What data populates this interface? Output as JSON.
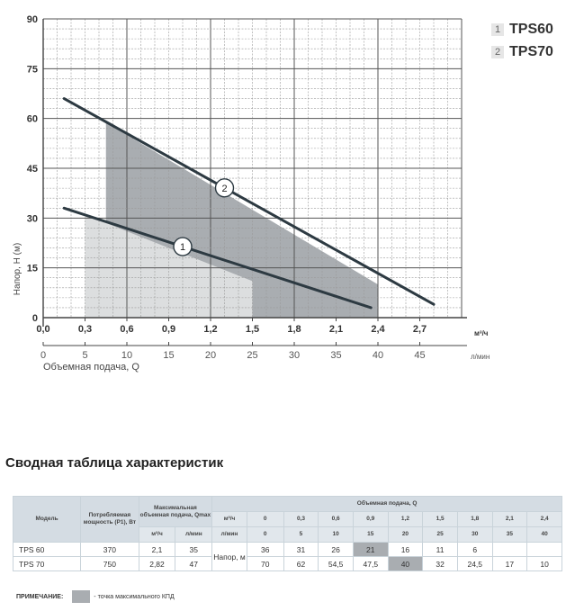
{
  "chart_data": {
    "type": "line",
    "xlabel": "Объемная подача, Q",
    "ylabel": "Напор, Н (м)",
    "x_unit_primary": "м³/ч",
    "x_unit_secondary": "л/мин",
    "xlim": [
      0,
      3.0
    ],
    "ylim": [
      0,
      90
    ],
    "x_ticks": [
      "0,0",
      "0,3",
      "0,6",
      "0,9",
      "1,2",
      "1,5",
      "1,8",
      "2,1",
      "2,4",
      "2,7"
    ],
    "x_ticks_secondary": [
      "0",
      "5",
      "10",
      "15",
      "20",
      "25",
      "30",
      "35",
      "40",
      "45"
    ],
    "y_ticks": [
      "0",
      "15",
      "30",
      "45",
      "60",
      "75",
      "90"
    ],
    "grid": true,
    "series": [
      {
        "name": "TPS60",
        "marker": "1",
        "x": [
          0.15,
          2.35
        ],
        "y": [
          33,
          3
        ],
        "region": {
          "x_start": 0.3,
          "x_end": 1.5,
          "upper": [
            [
              0.3,
              31
            ],
            [
              1.5,
              11
            ]
          ]
        },
        "region_color": "#dcdedf"
      },
      {
        "name": "TPS70",
        "marker": "2",
        "x": [
          0.15,
          2.8
        ],
        "y": [
          66,
          4
        ],
        "region": {
          "x_start": 0.45,
          "x_end": 2.4,
          "upper": [
            [
              0.45,
              58.8
            ],
            [
              2.4,
              10
            ]
          ]
        },
        "region_color": "#a9adb1"
      }
    ],
    "legend": [
      {
        "num": "1",
        "label": "TPS60"
      },
      {
        "num": "2",
        "label": "TPS70"
      }
    ],
    "colors": {
      "line": "#2d3a42",
      "grid": "#9a9a9a",
      "axis": "#444444"
    }
  },
  "table": {
    "title": "Сводная таблица характеристик",
    "headers": {
      "model": "Модель",
      "power": "Потребляемая мощность (Р1), Вт",
      "max_flow": "Максимальная объемная подача, Qmax",
      "flow_group": "Объемная подача, Q",
      "unit_m3h": "м³/ч",
      "unit_lmin": "л/мин",
      "q_m3h": [
        "0",
        "0,3",
        "0,6",
        "0,9",
        "1,2",
        "1,5",
        "1,8",
        "2,1",
        "2,4"
      ],
      "q_lmin": [
        "0",
        "5",
        "10",
        "15",
        "20",
        "25",
        "30",
        "35",
        "40"
      ],
      "head_label": "Напор, м"
    },
    "rows": [
      {
        "model": "TPS 60",
        "power": "370",
        "qmax_m3h": "2,1",
        "qmax_lmin": "35",
        "heads": [
          "36",
          "31",
          "26",
          "21",
          "16",
          "11",
          "6",
          "",
          ""
        ],
        "bep_index": 3
      },
      {
        "model": "TPS 70",
        "power": "750",
        "qmax_m3h": "2,82",
        "qmax_lmin": "47",
        "heads": [
          "70",
          "62",
          "54,5",
          "47,5",
          "40",
          "32",
          "24,5",
          "17",
          "10"
        ],
        "bep_index": 4
      }
    ],
    "note_label": "ПРИМЕЧАНИЕ:",
    "note_text": "- точка максимального КПД",
    "bep_color": "#a9adb1"
  }
}
